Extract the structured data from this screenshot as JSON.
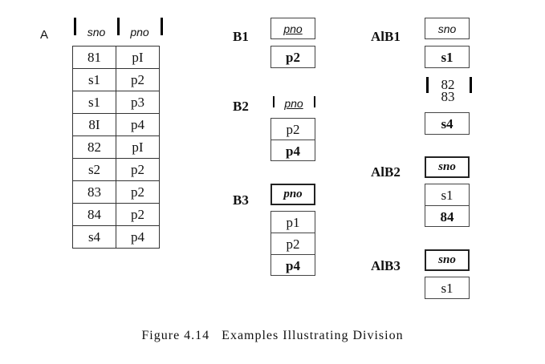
{
  "relationA": {
    "label": "A",
    "headers": [
      "sno",
      "pno"
    ],
    "rows": [
      [
        "81",
        "pI"
      ],
      [
        "s1",
        "p2"
      ],
      [
        "s1",
        "p3"
      ],
      [
        "8I",
        "p4"
      ],
      [
        "82",
        "pI"
      ],
      [
        "s2",
        "p2"
      ],
      [
        "83",
        "p2"
      ],
      [
        "84",
        "p2"
      ],
      [
        "s4",
        "p4"
      ]
    ]
  },
  "B1": {
    "label": "B1",
    "header": "pno",
    "rows": [
      "p2"
    ]
  },
  "B2": {
    "label": "B2",
    "header": "pno",
    "rows": [
      "p2",
      "p4"
    ]
  },
  "B3": {
    "label": "B3",
    "header": "pno",
    "rows": [
      "p1",
      "p2",
      "p4"
    ]
  },
  "AB1": {
    "label": "AlB1",
    "header": "sno",
    "rows": [
      "s1",
      "82",
      "83",
      "s4"
    ]
  },
  "AB2": {
    "label": "AlB2",
    "header": "sno",
    "rows": [
      "s1",
      "84"
    ]
  },
  "AB3": {
    "label": "AlB3",
    "header": "sno",
    "rows": [
      "s1"
    ]
  },
  "caption": "Figure 4.14   Examples Illustrating Division"
}
